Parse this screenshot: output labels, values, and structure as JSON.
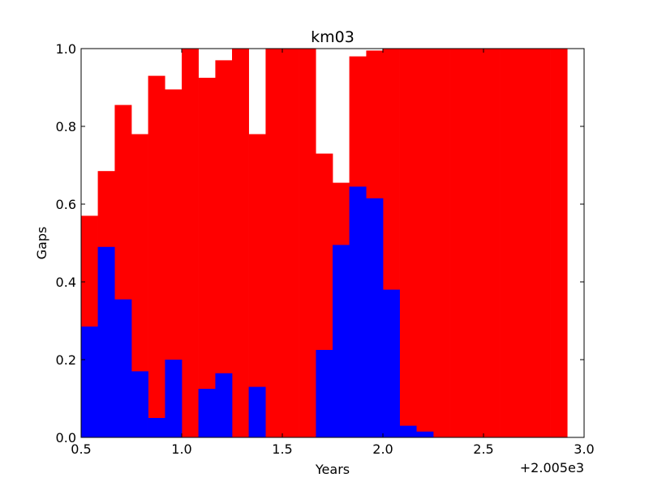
{
  "chart_data": {
    "type": "bar",
    "title": "km03",
    "xlabel": "Years",
    "ylabel": "Gaps",
    "x_offset_label": "+2.005e3",
    "xlim": [
      0.5,
      3.0
    ],
    "ylim": [
      0,
      1.0
    ],
    "x_ticks": [
      "0.5",
      "1.0",
      "1.5",
      "2.0",
      "2.5",
      "3.0"
    ],
    "y_ticks": [
      "0.0",
      "0.2",
      "0.4",
      "0.6",
      "0.8",
      "1.0"
    ],
    "bin_starts": [
      0.5,
      0.583,
      0.667,
      0.75,
      0.833,
      0.917,
      1.0,
      1.083,
      1.167,
      1.25,
      1.333,
      1.417,
      1.5,
      1.583,
      1.667,
      1.75,
      1.833,
      1.917,
      2.0,
      2.083,
      2.167,
      2.25,
      2.333,
      2.417,
      2.5,
      2.583,
      2.667,
      2.75,
      2.833
    ],
    "bin_width": 0.0833,
    "series": [
      {
        "color": "#ff0000",
        "values": [
          0.57,
          0.685,
          0.855,
          0.78,
          0.93,
          0.895,
          1.0,
          0.925,
          0.97,
          1.0,
          0.78,
          1.0,
          1.0,
          1.0,
          0.73,
          0.655,
          0.98,
          0.995,
          1.0,
          1.0,
          1.0,
          1.0,
          1.0,
          1.0,
          1.0,
          1.0,
          1.0,
          1.0,
          1.0
        ]
      },
      {
        "color": "#0000ff",
        "values": [
          0.285,
          0.49,
          0.355,
          0.17,
          0.05,
          0.2,
          0.0,
          0.125,
          0.165,
          0.0,
          0.13,
          0.0,
          0.0,
          0.0,
          0.225,
          0.495,
          0.645,
          0.615,
          0.38,
          0.03,
          0.015,
          0.0,
          0.0,
          0.0,
          0.0,
          0.0,
          0.0,
          0.0,
          0.0
        ]
      }
    ],
    "grid": false
  }
}
